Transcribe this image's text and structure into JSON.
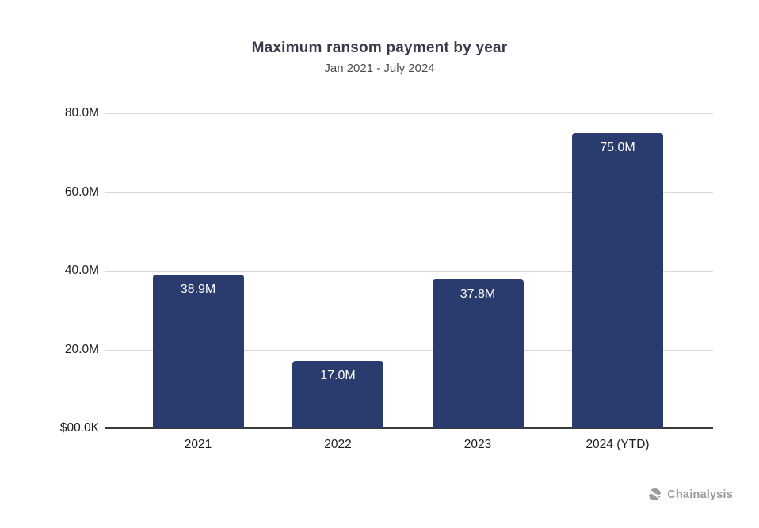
{
  "header": {
    "title": "Maximum ransom payment by year",
    "subtitle": "Jan 2021 - July 2024"
  },
  "chart_data": {
    "type": "bar",
    "title": "Maximum ransom payment by year",
    "subtitle": "Jan 2021 - July 2024",
    "xlabel": "",
    "ylabel": "",
    "unit": "USD",
    "categories": [
      "2021",
      "2022",
      "2023",
      "2024 (YTD)"
    ],
    "values": [
      38.9,
      17.0,
      37.8,
      75.0
    ],
    "bar_labels": [
      "38.9M",
      "17.0M",
      "37.8M",
      "75.0M"
    ],
    "ylim": [
      0,
      80
    ],
    "y_ticks": [
      {
        "value": 0,
        "label": "$00.0K"
      },
      {
        "value": 20,
        "label": "20.0M"
      },
      {
        "value": 40,
        "label": "40.0M"
      },
      {
        "value": 60,
        "label": "60.0M"
      },
      {
        "value": 80,
        "label": "80.0M"
      }
    ],
    "grid": true,
    "legend": false,
    "colors": {
      "bar": "#2a3c6e",
      "bar_label_text": "#ffffff",
      "gridline": "#d8d8d8",
      "axis_line": "#3a3a3a",
      "tick_text": "#1c1c1c"
    }
  },
  "footer": {
    "brand": "Chainalysis",
    "logo_icon": "chainalysis-mark",
    "brand_color": "#9b9b9b"
  }
}
